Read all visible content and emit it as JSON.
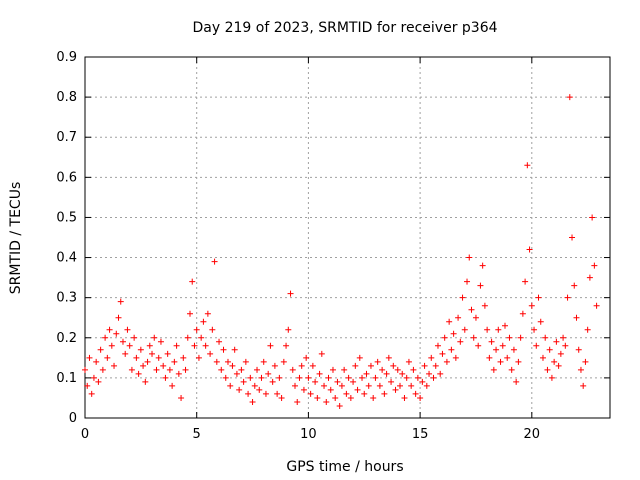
{
  "chart_data": {
    "type": "scatter",
    "title": "Day 219 of 2023, SRMTID for receiver p364",
    "xlabel": "GPS time / hours",
    "ylabel": "SRMTID / TECUs",
    "xlim": [
      0,
      23.5
    ],
    "ylim": [
      0,
      0.9
    ],
    "xticks": [
      0,
      5,
      10,
      15,
      20
    ],
    "xtick_labels": [
      "0",
      "5",
      "10",
      "15",
      "20"
    ],
    "yticks": [
      0,
      0.1,
      0.2,
      0.3,
      0.4,
      0.5,
      0.6,
      0.7,
      0.8,
      0.9
    ],
    "ytick_labels": [
      "0",
      "0.1",
      "0.2",
      "0.3",
      "0.4",
      "0.5",
      "0.6",
      "0.7",
      "0.8",
      "0.9"
    ],
    "grid": true,
    "marker": "+",
    "color": "#ff0000",
    "series": [
      {
        "name": "SRMTID",
        "points": [
          [
            0.0,
            0.12
          ],
          [
            0.1,
            0.08
          ],
          [
            0.2,
            0.15
          ],
          [
            0.3,
            0.06
          ],
          [
            0.4,
            0.1
          ],
          [
            0.5,
            0.14
          ],
          [
            0.6,
            0.09
          ],
          [
            0.7,
            0.17
          ],
          [
            0.8,
            0.12
          ],
          [
            0.9,
            0.2
          ],
          [
            1.0,
            0.15
          ],
          [
            1.1,
            0.22
          ],
          [
            1.2,
            0.18
          ],
          [
            1.3,
            0.13
          ],
          [
            1.4,
            0.21
          ],
          [
            1.5,
            0.25
          ],
          [
            1.6,
            0.29
          ],
          [
            1.7,
            0.19
          ],
          [
            1.8,
            0.16
          ],
          [
            1.9,
            0.22
          ],
          [
            2.0,
            0.18
          ],
          [
            2.1,
            0.12
          ],
          [
            2.2,
            0.2
          ],
          [
            2.3,
            0.15
          ],
          [
            2.4,
            0.11
          ],
          [
            2.5,
            0.17
          ],
          [
            2.6,
            0.13
          ],
          [
            2.7,
            0.09
          ],
          [
            2.8,
            0.14
          ],
          [
            2.9,
            0.18
          ],
          [
            3.0,
            0.16
          ],
          [
            3.1,
            0.2
          ],
          [
            3.2,
            0.12
          ],
          [
            3.3,
            0.15
          ],
          [
            3.4,
            0.19
          ],
          [
            3.5,
            0.13
          ],
          [
            3.6,
            0.1
          ],
          [
            3.7,
            0.16
          ],
          [
            3.8,
            0.12
          ],
          [
            3.9,
            0.08
          ],
          [
            4.0,
            0.14
          ],
          [
            4.1,
            0.18
          ],
          [
            4.2,
            0.11
          ],
          [
            4.3,
            0.05
          ],
          [
            4.4,
            0.15
          ],
          [
            4.5,
            0.12
          ],
          [
            4.6,
            0.2
          ],
          [
            4.7,
            0.26
          ],
          [
            4.8,
            0.34
          ],
          [
            4.9,
            0.18
          ],
          [
            5.0,
            0.22
          ],
          [
            5.1,
            0.15
          ],
          [
            5.2,
            0.2
          ],
          [
            5.3,
            0.24
          ],
          [
            5.4,
            0.18
          ],
          [
            5.5,
            0.26
          ],
          [
            5.6,
            0.16
          ],
          [
            5.7,
            0.22
          ],
          [
            5.8,
            0.39
          ],
          [
            5.9,
            0.14
          ],
          [
            6.0,
            0.19
          ],
          [
            6.1,
            0.12
          ],
          [
            6.2,
            0.17
          ],
          [
            6.3,
            0.1
          ],
          [
            6.4,
            0.14
          ],
          [
            6.5,
            0.08
          ],
          [
            6.6,
            0.13
          ],
          [
            6.7,
            0.17
          ],
          [
            6.8,
            0.11
          ],
          [
            6.9,
            0.07
          ],
          [
            7.0,
            0.12
          ],
          [
            7.1,
            0.09
          ],
          [
            7.2,
            0.14
          ],
          [
            7.3,
            0.06
          ],
          [
            7.4,
            0.1
          ],
          [
            7.5,
            0.04
          ],
          [
            7.6,
            0.08
          ],
          [
            7.7,
            0.12
          ],
          [
            7.8,
            0.07
          ],
          [
            7.9,
            0.1
          ],
          [
            8.0,
            0.14
          ],
          [
            8.1,
            0.06
          ],
          [
            8.2,
            0.11
          ],
          [
            8.3,
            0.18
          ],
          [
            8.4,
            0.09
          ],
          [
            8.5,
            0.13
          ],
          [
            8.6,
            0.06
          ],
          [
            8.7,
            0.1
          ],
          [
            8.8,
            0.05
          ],
          [
            8.9,
            0.14
          ],
          [
            9.0,
            0.18
          ],
          [
            9.1,
            0.22
          ],
          [
            9.2,
            0.31
          ],
          [
            9.3,
            0.12
          ],
          [
            9.4,
            0.08
          ],
          [
            9.5,
            0.04
          ],
          [
            9.6,
            0.1
          ],
          [
            9.7,
            0.13
          ],
          [
            9.8,
            0.07
          ],
          [
            9.9,
            0.15
          ],
          [
            10.0,
            0.1
          ],
          [
            10.1,
            0.06
          ],
          [
            10.2,
            0.13
          ],
          [
            10.3,
            0.09
          ],
          [
            10.4,
            0.05
          ],
          [
            10.5,
            0.11
          ],
          [
            10.6,
            0.16
          ],
          [
            10.7,
            0.08
          ],
          [
            10.8,
            0.04
          ],
          [
            10.9,
            0.1
          ],
          [
            11.0,
            0.07
          ],
          [
            11.1,
            0.12
          ],
          [
            11.2,
            0.05
          ],
          [
            11.3,
            0.09
          ],
          [
            11.4,
            0.03
          ],
          [
            11.5,
            0.08
          ],
          [
            11.6,
            0.12
          ],
          [
            11.7,
            0.06
          ],
          [
            11.8,
            0.1
          ],
          [
            11.9,
            0.05
          ],
          [
            12.0,
            0.09
          ],
          [
            12.1,
            0.13
          ],
          [
            12.2,
            0.07
          ],
          [
            12.3,
            0.15
          ],
          [
            12.4,
            0.1
          ],
          [
            12.5,
            0.06
          ],
          [
            12.6,
            0.11
          ],
          [
            12.7,
            0.08
          ],
          [
            12.8,
            0.13
          ],
          [
            12.9,
            0.05
          ],
          [
            13.0,
            0.1
          ],
          [
            13.1,
            0.14
          ],
          [
            13.2,
            0.08
          ],
          [
            13.3,
            0.12
          ],
          [
            13.4,
            0.06
          ],
          [
            13.5,
            0.11
          ],
          [
            13.6,
            0.15
          ],
          [
            13.7,
            0.09
          ],
          [
            13.8,
            0.13
          ],
          [
            13.9,
            0.07
          ],
          [
            14.0,
            0.12
          ],
          [
            14.1,
            0.08
          ],
          [
            14.2,
            0.11
          ],
          [
            14.3,
            0.05
          ],
          [
            14.4,
            0.1
          ],
          [
            14.5,
            0.14
          ],
          [
            14.6,
            0.08
          ],
          [
            14.7,
            0.12
          ],
          [
            14.8,
            0.06
          ],
          [
            14.9,
            0.1
          ],
          [
            15.0,
            0.05
          ],
          [
            15.1,
            0.09
          ],
          [
            15.2,
            0.13
          ],
          [
            15.3,
            0.08
          ],
          [
            15.4,
            0.11
          ],
          [
            15.5,
            0.15
          ],
          [
            15.6,
            0.1
          ],
          [
            15.7,
            0.13
          ],
          [
            15.8,
            0.18
          ],
          [
            15.9,
            0.11
          ],
          [
            16.0,
            0.16
          ],
          [
            16.1,
            0.2
          ],
          [
            16.2,
            0.14
          ],
          [
            16.3,
            0.24
          ],
          [
            16.4,
            0.17
          ],
          [
            16.5,
            0.21
          ],
          [
            16.6,
            0.15
          ],
          [
            16.7,
            0.25
          ],
          [
            16.8,
            0.19
          ],
          [
            16.9,
            0.3
          ],
          [
            17.0,
            0.22
          ],
          [
            17.1,
            0.34
          ],
          [
            17.2,
            0.4
          ],
          [
            17.3,
            0.27
          ],
          [
            17.4,
            0.2
          ],
          [
            17.5,
            0.25
          ],
          [
            17.6,
            0.18
          ],
          [
            17.7,
            0.33
          ],
          [
            17.8,
            0.38
          ],
          [
            17.9,
            0.28
          ],
          [
            18.0,
            0.22
          ],
          [
            18.1,
            0.15
          ],
          [
            18.2,
            0.19
          ],
          [
            18.3,
            0.12
          ],
          [
            18.4,
            0.17
          ],
          [
            18.5,
            0.22
          ],
          [
            18.6,
            0.14
          ],
          [
            18.7,
            0.18
          ],
          [
            18.8,
            0.23
          ],
          [
            18.9,
            0.15
          ],
          [
            19.0,
            0.2
          ],
          [
            19.1,
            0.12
          ],
          [
            19.2,
            0.17
          ],
          [
            19.3,
            0.09
          ],
          [
            19.4,
            0.14
          ],
          [
            19.5,
            0.2
          ],
          [
            19.6,
            0.26
          ],
          [
            19.7,
            0.34
          ],
          [
            19.8,
            0.63
          ],
          [
            19.9,
            0.42
          ],
          [
            20.0,
            0.28
          ],
          [
            20.1,
            0.22
          ],
          [
            20.2,
            0.18
          ],
          [
            20.3,
            0.3
          ],
          [
            20.4,
            0.24
          ],
          [
            20.5,
            0.15
          ],
          [
            20.6,
            0.2
          ],
          [
            20.7,
            0.12
          ],
          [
            20.8,
            0.17
          ],
          [
            20.9,
            0.1
          ],
          [
            21.0,
            0.14
          ],
          [
            21.1,
            0.19
          ],
          [
            21.2,
            0.13
          ],
          [
            21.3,
            0.16
          ],
          [
            21.4,
            0.2
          ],
          [
            21.5,
            0.18
          ],
          [
            21.6,
            0.3
          ],
          [
            21.7,
            0.8
          ],
          [
            21.8,
            0.45
          ],
          [
            21.9,
            0.33
          ],
          [
            22.0,
            0.25
          ],
          [
            22.1,
            0.17
          ],
          [
            22.2,
            0.12
          ],
          [
            22.3,
            0.08
          ],
          [
            22.4,
            0.14
          ],
          [
            22.5,
            0.22
          ],
          [
            22.6,
            0.35
          ],
          [
            22.7,
            0.5
          ],
          [
            22.8,
            0.38
          ],
          [
            22.9,
            0.28
          ]
        ]
      }
    ]
  }
}
